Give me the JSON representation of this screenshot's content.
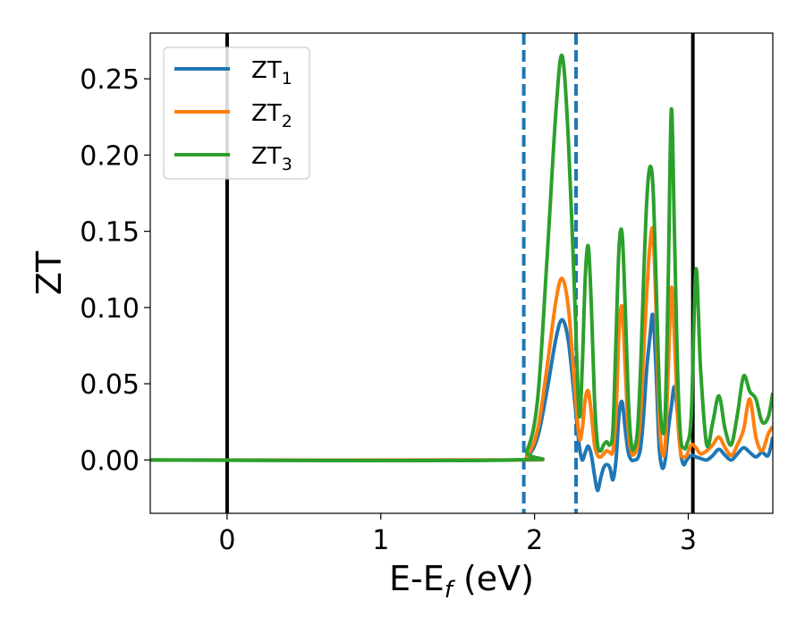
{
  "chart_data": {
    "type": "line",
    "xlabel": {
      "main": "E-E",
      "sub": "f",
      "unit": " (eV)"
    },
    "ylabel": "ZT",
    "xlim": [
      -0.5,
      3.55
    ],
    "ylim": [
      -0.035,
      0.28
    ],
    "x_ticks": [
      0,
      1,
      2,
      3
    ],
    "x_tick_labels": [
      "0",
      "1",
      "2",
      "3"
    ],
    "y_ticks": [
      0.0,
      0.05,
      0.1,
      0.15,
      0.2,
      0.25
    ],
    "y_tick_labels": [
      "0.00",
      "0.05",
      "0.10",
      "0.15",
      "0.20",
      "0.25"
    ],
    "grid": false,
    "legend_position": "top-left",
    "vertical_lines": [
      {
        "x": 0.0,
        "style": "solid",
        "color": "#000000"
      },
      {
        "x": 1.93,
        "style": "dashed",
        "color": "#1f77b4"
      },
      {
        "x": 2.27,
        "style": "dashed",
        "color": "#1f77b4"
      },
      {
        "x": 3.03,
        "style": "solid",
        "color": "#000000"
      }
    ],
    "series": [
      {
        "name": "ZT",
        "subscript": "1",
        "color": "#1f77b4",
        "x": [
          -0.5,
          1.85,
          1.95,
          2.02,
          2.08,
          2.14,
          2.18,
          2.22,
          2.26,
          2.29,
          2.31,
          2.33,
          2.35,
          2.37,
          2.39,
          2.41,
          2.43,
          2.45,
          2.47,
          2.49,
          2.51,
          2.53,
          2.55,
          2.57,
          2.59,
          2.61,
          2.63,
          2.65,
          2.67,
          2.69,
          2.71,
          2.73,
          2.75,
          2.77,
          2.79,
          2.81,
          2.83,
          2.85,
          2.87,
          2.89,
          2.91,
          2.93,
          2.95,
          2.97,
          2.99,
          3.02,
          3.05,
          3.08,
          3.12,
          3.16,
          3.2,
          3.24,
          3.28,
          3.32,
          3.36,
          3.4,
          3.44,
          3.48,
          3.52,
          3.55
        ],
        "y": [
          0.0,
          0.0,
          0.002,
          0.015,
          0.045,
          0.08,
          0.092,
          0.078,
          0.04,
          0.01,
          0.0,
          0.005,
          0.009,
          0.003,
          -0.01,
          -0.02,
          -0.012,
          -0.005,
          -0.003,
          -0.005,
          -0.013,
          0.0,
          0.03,
          0.038,
          0.02,
          0.005,
          0.0,
          0.0,
          0.001,
          0.008,
          0.03,
          0.06,
          0.08,
          0.095,
          0.06,
          0.01,
          -0.005,
          0.0,
          0.02,
          0.035,
          0.048,
          0.03,
          0.005,
          -0.003,
          0.0,
          0.003,
          0.002,
          0.001,
          0.0,
          0.003,
          0.007,
          0.003,
          0.0,
          0.004,
          0.008,
          0.005,
          0.002,
          0.005,
          0.003,
          0.015
        ]
      },
      {
        "name": "ZT",
        "subscript": "2",
        "color": "#ff7f0e",
        "x": [
          -0.5,
          1.85,
          1.95,
          2.02,
          2.08,
          2.14,
          2.18,
          2.22,
          2.26,
          2.29,
          2.31,
          2.33,
          2.35,
          2.37,
          2.39,
          2.41,
          2.43,
          2.45,
          2.47,
          2.49,
          2.51,
          2.53,
          2.55,
          2.57,
          2.59,
          2.61,
          2.63,
          2.65,
          2.67,
          2.69,
          2.71,
          2.73,
          2.75,
          2.77,
          2.79,
          2.81,
          2.83,
          2.85,
          2.87,
          2.89,
          2.91,
          2.93,
          2.95,
          2.97,
          2.99,
          3.02,
          3.05,
          3.08,
          3.12,
          3.16,
          3.2,
          3.24,
          3.28,
          3.32,
          3.36,
          3.4,
          3.44,
          3.48,
          3.52,
          3.55
        ],
        "y": [
          0.0,
          0.0,
          0.003,
          0.02,
          0.06,
          0.105,
          0.119,
          0.1,
          0.05,
          0.015,
          0.02,
          0.04,
          0.045,
          0.03,
          0.01,
          0.003,
          0.002,
          0.004,
          0.006,
          0.005,
          0.006,
          0.03,
          0.085,
          0.1,
          0.06,
          0.02,
          0.005,
          0.004,
          0.01,
          0.03,
          0.07,
          0.11,
          0.14,
          0.15,
          0.1,
          0.03,
          0.005,
          0.01,
          0.06,
          0.113,
          0.08,
          0.03,
          0.005,
          0.002,
          0.003,
          0.01,
          0.008,
          0.004,
          0.006,
          0.01,
          0.015,
          0.008,
          0.003,
          0.01,
          0.02,
          0.04,
          0.015,
          0.006,
          0.017,
          0.022
        ]
      },
      {
        "name": "ZT",
        "subscript": "3",
        "color": "#2ca02c",
        "x": [
          -0.5,
          1.85,
          1.95,
          2.02,
          2.08,
          2.14,
          2.18,
          2.22,
          2.26,
          2.29,
          2.31,
          2.33,
          2.35,
          2.37,
          2.39,
          2.41,
          2.43,
          2.45,
          2.47,
          2.49,
          2.51,
          2.53,
          2.55,
          2.57,
          2.59,
          2.61,
          2.63,
          2.65,
          2.67,
          2.69,
          2.71,
          2.73,
          2.75,
          2.77,
          2.79,
          2.81,
          2.83,
          2.85,
          2.87,
          2.89,
          2.91,
          2.93,
          2.95,
          2.97,
          2.99,
          3.02,
          3.05,
          3.08,
          3.12,
          3.16,
          3.2,
          3.24,
          3.28,
          3.32,
          3.36,
          3.4,
          3.44,
          3.48,
          3.52,
          3.55
        ],
        "y": [
          0.0,
          0.0,
          0.006,
          0.04,
          0.13,
          0.23,
          0.265,
          0.21,
          0.11,
          0.03,
          0.06,
          0.12,
          0.14,
          0.1,
          0.04,
          0.01,
          0.006,
          0.01,
          0.012,
          0.01,
          0.02,
          0.08,
          0.14,
          0.148,
          0.1,
          0.04,
          0.01,
          0.008,
          0.02,
          0.06,
          0.12,
          0.17,
          0.192,
          0.18,
          0.12,
          0.05,
          0.02,
          0.03,
          0.12,
          0.23,
          0.15,
          0.06,
          0.015,
          0.008,
          0.01,
          0.03,
          0.125,
          0.06,
          0.01,
          0.025,
          0.042,
          0.02,
          0.01,
          0.03,
          0.055,
          0.045,
          0.04,
          0.025,
          0.028,
          0.044
        ]
      }
    ]
  }
}
